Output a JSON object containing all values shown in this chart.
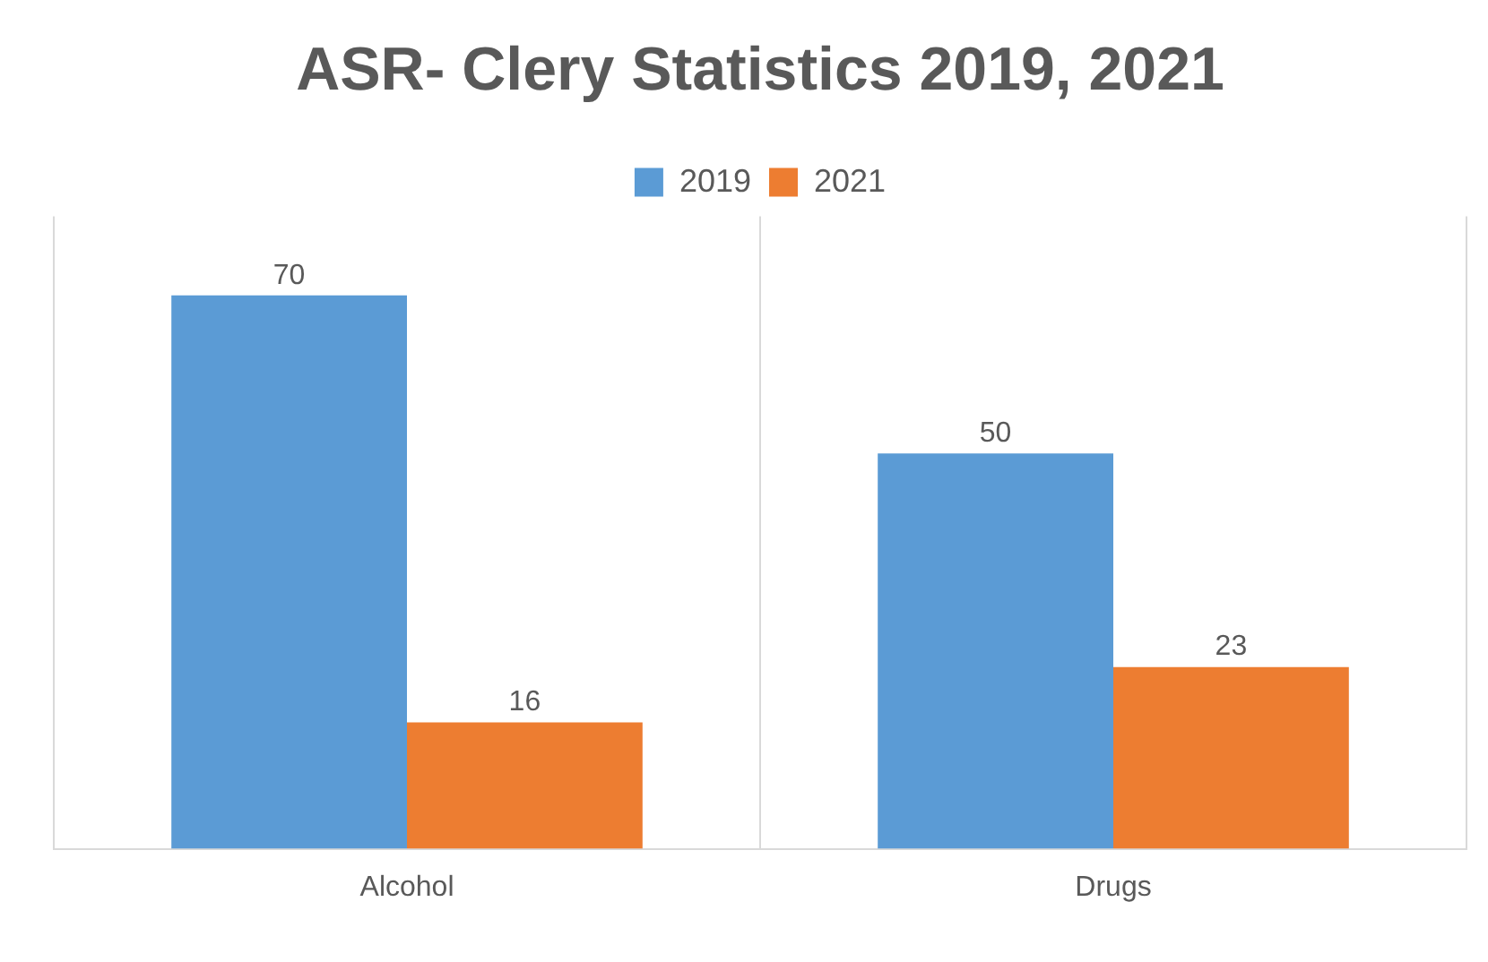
{
  "chart_data": {
    "type": "bar",
    "title": "ASR- Clery Statistics 2019, 2021",
    "categories": [
      "Alcohol",
      "Drugs"
    ],
    "series": [
      {
        "name": "2019",
        "color": "#5b9bd5",
        "values": [
          70,
          50
        ]
      },
      {
        "name": "2021",
        "color": "#ed7d31",
        "values": [
          16,
          23
        ]
      }
    ],
    "ylim": [
      0,
      80
    ],
    "tick_labels": "x",
    "grid": "x",
    "legend": "top",
    "data_labels": true
  }
}
